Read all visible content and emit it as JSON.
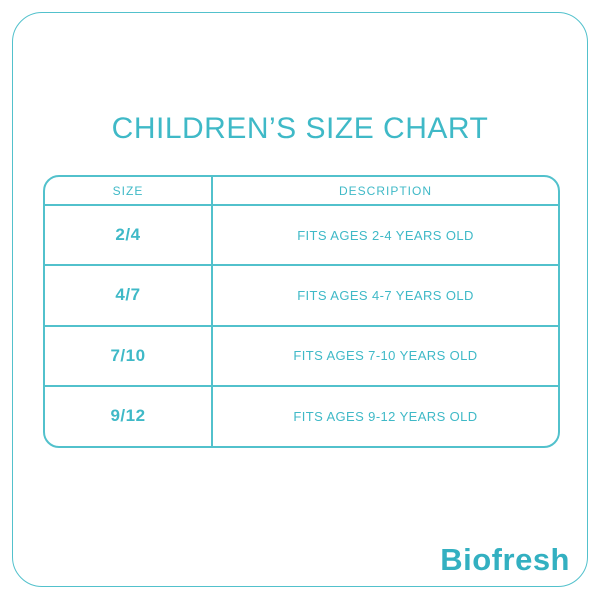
{
  "page": {
    "title": "CHILDREN’S SIZE CHART",
    "brand": "Biofresh"
  },
  "colors": {
    "teal_text": "#3FB9C7",
    "teal_border": "#52C1CC",
    "logo_teal": "#33B0C1",
    "background": "#FFFFFF"
  },
  "chart_data": {
    "type": "table",
    "title": "CHILDREN’S SIZE CHART",
    "columns": [
      "SIZE",
      "DESCRIPTION"
    ],
    "rows": [
      {
        "size": "2/4",
        "description": "FITS AGES 2-4 YEARS OLD"
      },
      {
        "size": "4/7",
        "description": "FITS AGES 4-7 YEARS OLD"
      },
      {
        "size": "7/10",
        "description": "FITS AGES 7-10 YEARS OLD"
      },
      {
        "size": "9/12",
        "description": "FITS AGES 9-12 YEARS OLD"
      }
    ]
  }
}
